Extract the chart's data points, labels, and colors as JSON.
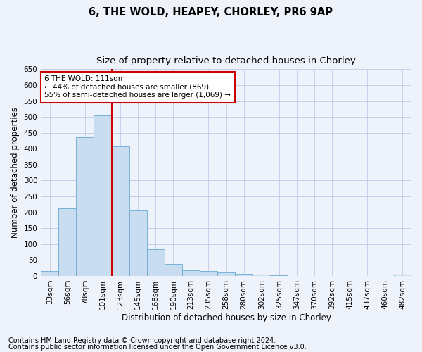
{
  "title": "6, THE WOLD, HEAPEY, CHORLEY, PR6 9AP",
  "subtitle": "Size of property relative to detached houses in Chorley",
  "xlabel": "Distribution of detached houses by size in Chorley",
  "ylabel": "Number of detached properties",
  "categories": [
    "33sqm",
    "56sqm",
    "78sqm",
    "101sqm",
    "123sqm",
    "145sqm",
    "168sqm",
    "190sqm",
    "213sqm",
    "235sqm",
    "258sqm",
    "280sqm",
    "302sqm",
    "325sqm",
    "347sqm",
    "370sqm",
    "392sqm",
    "415sqm",
    "437sqm",
    "460sqm",
    "482sqm"
  ],
  "values": [
    15,
    212,
    435,
    505,
    407,
    205,
    83,
    38,
    18,
    15,
    12,
    7,
    4,
    2,
    1,
    1,
    1,
    0,
    0,
    0,
    4
  ],
  "bar_color": "#c9ddf0",
  "bar_edge_color": "#6aaad4",
  "vline_x_index": 3.5,
  "vline_color": "#cc0000",
  "annotation_text": "6 THE WOLD: 111sqm\n← 44% of detached houses are smaller (869)\n55% of semi-detached houses are larger (1,069) →",
  "annotation_box_color": "white",
  "annotation_box_edge": "#cc0000",
  "ylim": [
    0,
    650
  ],
  "yticks": [
    0,
    50,
    100,
    150,
    200,
    250,
    300,
    350,
    400,
    450,
    500,
    550,
    600,
    650
  ],
  "footnote1": "Contains HM Land Registry data © Crown copyright and database right 2024.",
  "footnote2": "Contains public sector information licensed under the Open Government Licence v3.0.",
  "bg_color": "#eef2fb",
  "grid_color": "#c5cfe8",
  "title_fontsize": 10.5,
  "subtitle_fontsize": 9.5,
  "xlabel_fontsize": 8.5,
  "ylabel_fontsize": 8.5,
  "footnote_fontsize": 7,
  "tick_fontsize": 7.5,
  "annotation_fontsize": 7.5
}
